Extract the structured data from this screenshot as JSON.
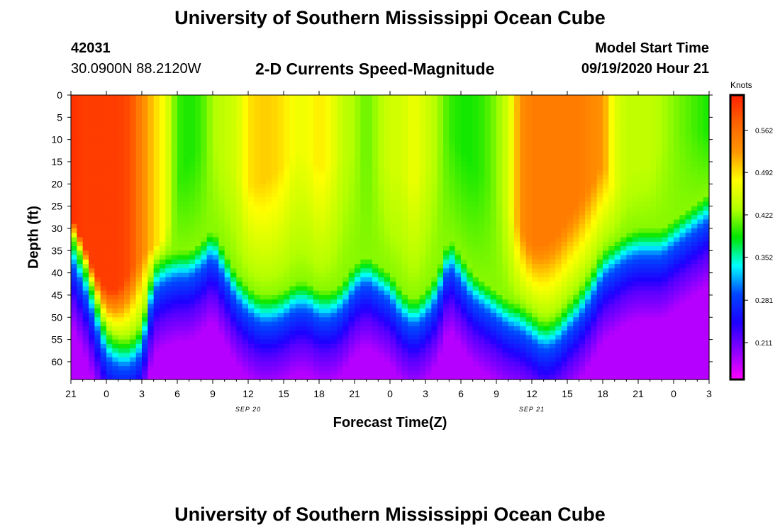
{
  "page": {
    "title_top": "University of Southern Mississippi Ocean Cube",
    "title_bottom": "University of Southern Mississippi Ocean Cube",
    "station_id": "42031",
    "location": "30.0900N 88.2120W",
    "chart_title": "2-D Currents Speed-Magnitude",
    "model_start_label": "Model Start Time",
    "model_start_value": "09/19/2020 Hour 21"
  },
  "colors": {
    "background": "#ffffff",
    "axis": "#000000",
    "colorscale": [
      "#ff00ff",
      "#8c00ff",
      "#1e00ff",
      "#0046ff",
      "#00ffff",
      "#00e600",
      "#b4ff00",
      "#ffff00",
      "#ff9600",
      "#ff6400",
      "#ff2000"
    ]
  },
  "chart_data": {
    "type": "heatmap",
    "title": "2-D Currents Speed-Magnitude",
    "xlabel": "Forecast Time(Z)",
    "ylabel": "Depth (ft)",
    "x_tick_labels": [
      "21",
      "0",
      "3",
      "6",
      "9",
      "12",
      "15",
      "18",
      "21",
      "0",
      "3",
      "6",
      "9",
      "12",
      "15",
      "18",
      "21",
      "0",
      "3"
    ],
    "date_labels": [
      {
        "text": "SEP 20",
        "at_hour": 12
      },
      {
        "text": "SEP 21",
        "at_hour": 36
      }
    ],
    "x_range_hours": [
      -3,
      51
    ],
    "y_ticks": [
      0,
      5,
      10,
      15,
      20,
      25,
      30,
      35,
      40,
      45,
      50,
      55,
      60
    ],
    "ylim": [
      0,
      64
    ],
    "colorbar": {
      "title": "Knots",
      "ticks": [
        "0.211",
        "0.281",
        "0.352",
        "0.422",
        "0.492",
        "0.562"
      ],
      "range": [
        0.15,
        0.62
      ]
    },
    "time_hours": [
      -3,
      -2,
      -1,
      0,
      1,
      2,
      3,
      4,
      5,
      6,
      7,
      8,
      9,
      10,
      11,
      12,
      13,
      14,
      15,
      16,
      17,
      18,
      19,
      20,
      21,
      22,
      23,
      24,
      25,
      26,
      27,
      28,
      29,
      30,
      31,
      32,
      33,
      34,
      35,
      36,
      37,
      38,
      39,
      40,
      41,
      42,
      43,
      44,
      45,
      46,
      47,
      48,
      49,
      50,
      51
    ],
    "surface_speed": [
      0.61,
      0.6,
      0.6,
      0.6,
      0.6,
      0.59,
      0.54,
      0.5,
      0.47,
      0.4,
      0.39,
      0.4,
      0.43,
      0.44,
      0.45,
      0.49,
      0.5,
      0.5,
      0.49,
      0.47,
      0.47,
      0.49,
      0.47,
      0.44,
      0.43,
      0.41,
      0.43,
      0.45,
      0.45,
      0.47,
      0.45,
      0.43,
      0.4,
      0.39,
      0.39,
      0.4,
      0.42,
      0.45,
      0.53,
      0.55,
      0.55,
      0.55,
      0.55,
      0.55,
      0.54,
      0.53,
      0.46,
      0.44,
      0.44,
      0.44,
      0.43,
      0.42,
      0.41,
      0.4,
      0.39
    ],
    "core_depth_ft": [
      27,
      33,
      40,
      44,
      44,
      40,
      36,
      34,
      32,
      20,
      14,
      12,
      10,
      14,
      18,
      20,
      20,
      18,
      16,
      12,
      14,
      16,
      16,
      14,
      12,
      12,
      14,
      16,
      18,
      20,
      16,
      12,
      8,
      12,
      16,
      18,
      22,
      26,
      30,
      34,
      34,
      32,
      28,
      24,
      20,
      15,
      22,
      18,
      16,
      14,
      12,
      10,
      8,
      8,
      8
    ],
    "green_depth_ft": [
      30,
      36,
      45,
      53,
      55,
      55,
      52,
      38,
      36,
      35,
      35,
      33,
      30,
      35,
      40,
      43,
      45,
      45,
      44,
      42,
      42,
      44,
      44,
      42,
      38,
      36,
      38,
      40,
      44,
      46,
      44,
      40,
      32,
      36,
      40,
      42,
      44,
      46,
      47,
      49,
      51,
      50,
      47,
      44,
      40,
      35,
      33,
      31,
      30,
      30,
      30,
      28,
      26,
      24,
      22
    ],
    "min_speed": 0.18
  }
}
